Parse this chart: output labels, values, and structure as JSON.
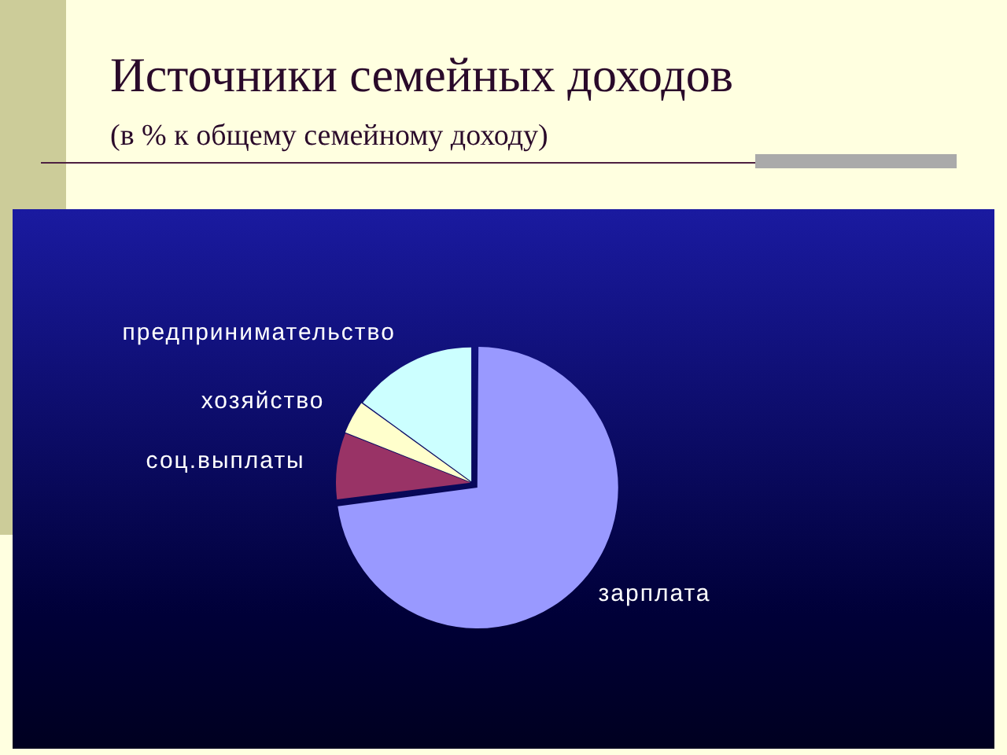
{
  "chart_data": {
    "type": "pie",
    "title": "Источники семейных доходов",
    "subtitle": "(в % к общему семейному доходу)",
    "categories": [
      "зарплата",
      "соц.выплаты",
      "хозяйство",
      "предпринимательство"
    ],
    "values": [
      73,
      8,
      4,
      15
    ],
    "colors": [
      "#9999ff",
      "#993366",
      "#ffffcc",
      "#ccffff"
    ]
  }
}
